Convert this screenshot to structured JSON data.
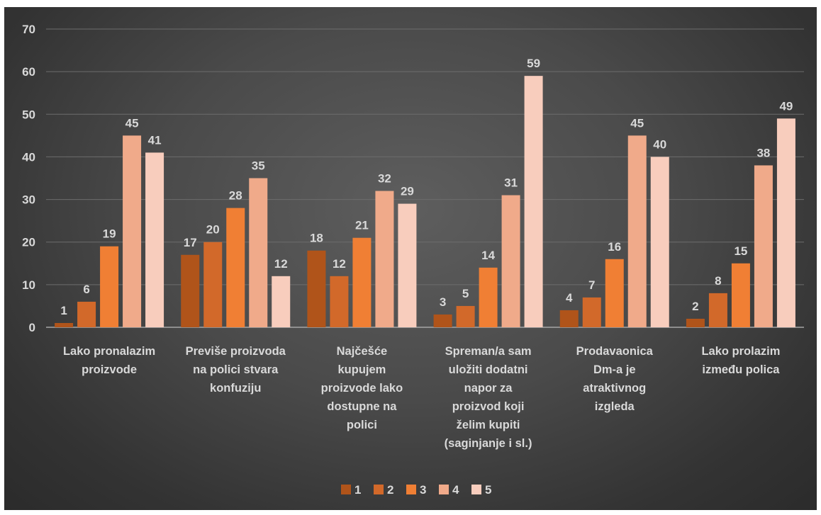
{
  "chart_data": {
    "type": "bar",
    "title": "",
    "xlabel": "",
    "ylabel": "",
    "ylim": [
      0,
      70
    ],
    "yticks": [
      0,
      10,
      20,
      30,
      40,
      50,
      60,
      70
    ],
    "grid": true,
    "legend_position": "bottom",
    "categories": [
      "Lako pronalazim proizvode",
      "Previše proizvoda na polici stvara konfuziju",
      "Najčešće kupujem proizvode lako dostupne na polici",
      "Spreman/a sam uložiti dodatni napor za proizvod koji želim kupiti (saginjanje i sl.)",
      "Prodavaonica Dm-a je atraktivnog izgleda",
      "Lako prolazim između polica"
    ],
    "category_lines": [
      [
        "Lako pronalazim",
        "proizvode"
      ],
      [
        "Previše proizvoda",
        "na polici stvara",
        "konfuziju"
      ],
      [
        "Najčešće",
        "kupujem",
        "proizvode lako",
        "dostupne na",
        "polici"
      ],
      [
        "Spreman/a sam",
        "uložiti dodatni",
        "napor za",
        "proizvod koji",
        "želim kupiti",
        "(saginjanje i sl.)"
      ],
      [
        "Prodavaonica",
        "Dm-a je",
        "atraktivnog",
        "izgleda"
      ],
      [
        "Lako prolazim",
        "između polica"
      ]
    ],
    "series": [
      {
        "name": "1",
        "color": "#b0541a",
        "values": [
          1,
          17,
          18,
          3,
          4,
          2
        ]
      },
      {
        "name": "2",
        "color": "#d2692a",
        "values": [
          6,
          20,
          12,
          5,
          7,
          8
        ]
      },
      {
        "name": "3",
        "color": "#f07f34",
        "values": [
          19,
          28,
          21,
          14,
          16,
          15
        ]
      },
      {
        "name": "4",
        "color": "#f0aa8a",
        "values": [
          45,
          35,
          32,
          31,
          45,
          38
        ]
      },
      {
        "name": "5",
        "color": "#f8cdbd",
        "values": [
          41,
          12,
          29,
          59,
          40,
          49
        ]
      }
    ]
  }
}
